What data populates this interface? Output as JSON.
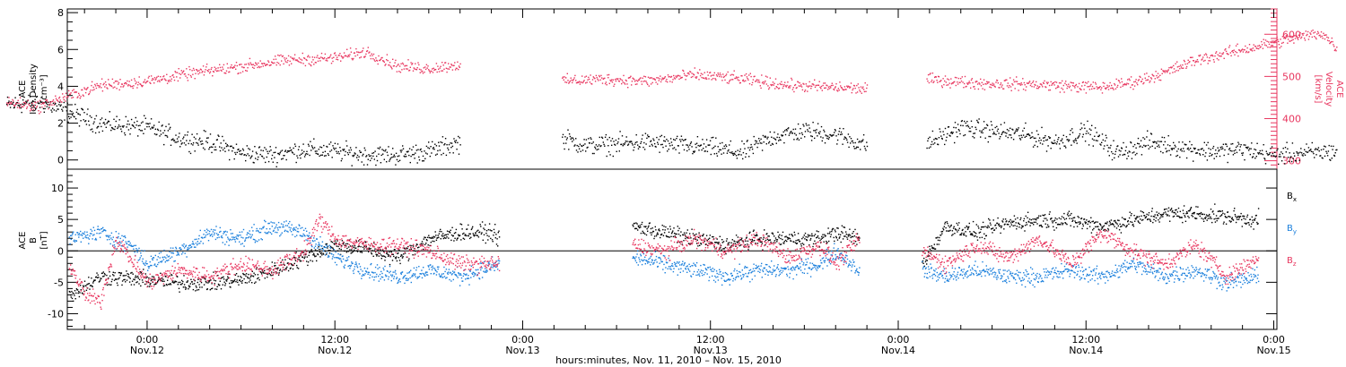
{
  "chart_data": [
    {
      "type": "scatter",
      "panel": "top",
      "ylabel_lines": [
        "ACE",
        "Ion Density",
        "[cm⁻³]"
      ],
      "y2label_lines": [
        "ACE",
        "Velocity",
        "[km/s]"
      ],
      "ylim": [
        -0.5,
        8.2
      ],
      "y2lim": [
        280,
        660
      ],
      "yticks": [
        0,
        2,
        4,
        6,
        8
      ],
      "y2ticks": [
        300,
        400,
        500,
        600
      ],
      "colors": {
        "density": "#000000",
        "velocity": "#e8365f"
      },
      "series": [
        {
          "key": "density",
          "axis": "left",
          "color": "#000000",
          "segments": [
            {
              "points": [
                [
                  -9,
                  3.0
                ],
                [
                  -7,
                  3.2
                ],
                [
                  -5,
                  2.6
                ],
                [
                  -3,
                  2.0
                ],
                [
                  0,
                  1.8
                ],
                [
                  2,
                  1.2
                ],
                [
                  4,
                  1.0
                ],
                [
                  6,
                  0.4
                ],
                [
                  8,
                  0.3
                ],
                [
                  10,
                  0.6
                ],
                [
                  12,
                  0.5
                ],
                [
                  14,
                  0.3
                ],
                [
                  16,
                  0.3
                ],
                [
                  18,
                  0.5
                ],
                [
                  20,
                  1.0
                ]
              ]
            },
            {
              "points": [
                [
                  26.5,
                  1.2
                ],
                [
                  28,
                  0.8
                ],
                [
                  30,
                  0.9
                ],
                [
                  32,
                  1.0
                ],
                [
                  34,
                  0.8
                ],
                [
                  36,
                  0.7
                ],
                [
                  38,
                  0.4
                ],
                [
                  40,
                  1.3
                ],
                [
                  42,
                  1.6
                ],
                [
                  44,
                  1.4
                ],
                [
                  46,
                  0.8
                ]
              ]
            },
            {
              "points": [
                [
                  49.8,
                  0.9
                ],
                [
                  52,
                  1.8
                ],
                [
                  54,
                  1.6
                ],
                [
                  56,
                  1.4
                ],
                [
                  58,
                  1.0
                ],
                [
                  60,
                  1.6
                ],
                [
                  62,
                  0.4
                ],
                [
                  64,
                  1.0
                ],
                [
                  66,
                  0.7
                ],
                [
                  68,
                  0.5
                ],
                [
                  70,
                  0.6
                ],
                [
                  72,
                  0.3
                ],
                [
                  74,
                  0.4
                ],
                [
                  76,
                  0.5
                ]
              ]
            }
          ]
        },
        {
          "key": "velocity",
          "axis": "right",
          "color": "#e8365f",
          "segments": [
            {
              "points": [
                [
                  -9,
                  440
                ],
                [
                  -7,
                  430
                ],
                [
                  -5,
                  455
                ],
                [
                  -3,
                  480
                ],
                [
                  0,
                  490
                ],
                [
                  3,
                  510
                ],
                [
                  6,
                  525
                ],
                [
                  9,
                  540
                ],
                [
                  12,
                  545
                ],
                [
                  14,
                  560
                ],
                [
                  16,
                  525
                ],
                [
                  18,
                  520
                ],
                [
                  20,
                  530
                ]
              ]
            },
            {
              "points": [
                [
                  26.5,
                  490
                ],
                [
                  29,
                  495
                ],
                [
                  32,
                  490
                ],
                [
                  35,
                  505
                ],
                [
                  38,
                  495
                ],
                [
                  41,
                  480
                ],
                [
                  44,
                  475
                ],
                [
                  46,
                  472
                ]
              ]
            },
            {
              "points": [
                [
                  49.8,
                  495
                ],
                [
                  53,
                  485
                ],
                [
                  57,
                  482
                ],
                [
                  61,
                  475
                ],
                [
                  63,
                  488
                ],
                [
                  65,
                  510
                ],
                [
                  67,
                  540
                ],
                [
                  70,
                  565
                ],
                [
                  73,
                  590
                ],
                [
                  75,
                  605
                ],
                [
                  76,
                  570
                ]
              ]
            }
          ]
        }
      ]
    },
    {
      "type": "scatter",
      "panel": "bottom",
      "ylabel_lines": [
        "ACE",
        "B",
        "[nT]"
      ],
      "ylim": [
        -12.5,
        13
      ],
      "yticks": [
        -10,
        -5,
        0,
        5,
        10
      ],
      "zero_line": true,
      "xlabel": "hours:minutes, Nov. 11, 2010 – Nov. 15, 2010",
      "x_start_hours_before_midnight": 5.1,
      "xlim_hours": [
        -5.1,
        72.2
      ],
      "xticks": [
        {
          "hours": 0,
          "time": "0:00",
          "date": "Nov.12"
        },
        {
          "hours": 12,
          "time": "12:00",
          "date": "Nov.12"
        },
        {
          "hours": 24,
          "time": "0:00",
          "date": "Nov.13"
        },
        {
          "hours": 36,
          "time": "12:00",
          "date": "Nov.13"
        },
        {
          "hours": 48,
          "time": "0:00",
          "date": "Nov.14"
        },
        {
          "hours": 60,
          "time": "12:00",
          "date": "Nov.14"
        },
        {
          "hours": 72,
          "time": "0:00",
          "date": "Nov.15"
        }
      ],
      "legend": [
        {
          "label": "B",
          "sub": "x",
          "color": "#000000"
        },
        {
          "label": "B",
          "sub": "y",
          "color": "#1a7fdc"
        },
        {
          "label": "B",
          "sub": "z",
          "color": "#e8365f"
        }
      ],
      "series": [
        {
          "key": "bx",
          "color": "#000000",
          "segments": [
            {
              "points": [
                [
                  -5,
                  -7
                ],
                [
                  -3,
                  -4
                ],
                [
                  0,
                  -4.5
                ],
                [
                  2,
                  -5
                ],
                [
                  4,
                  -5
                ],
                [
                  6,
                  -4.5
                ],
                [
                  8,
                  -3
                ],
                [
                  10,
                  -1
                ],
                [
                  12,
                  1
                ],
                [
                  14,
                  0.5
                ],
                [
                  16,
                  -1
                ],
                [
                  18,
                  2
                ],
                [
                  20,
                  3
                ],
                [
                  22,
                  3
                ],
                [
                  22.5,
                  2
                ]
              ]
            },
            {
              "points": [
                [
                  31,
                  4
                ],
                [
                  33,
                  3
                ],
                [
                  35,
                  2
                ],
                [
                  37,
                  1
                ],
                [
                  39,
                  2
                ],
                [
                  41,
                  2
                ],
                [
                  43,
                  2
                ],
                [
                  44,
                  3
                ],
                [
                  45.5,
                  2
                ]
              ]
            },
            {
              "points": [
                [
                  49.5,
                  -2
                ],
                [
                  51,
                  4
                ],
                [
                  53,
                  3
                ],
                [
                  55,
                  4.5
                ],
                [
                  57,
                  5
                ],
                [
                  59,
                  5
                ],
                [
                  61,
                  4
                ],
                [
                  63,
                  5
                ],
                [
                  65,
                  6
                ],
                [
                  67,
                  6
                ],
                [
                  69,
                  5.5
                ],
                [
                  71,
                  5
                ]
              ]
            }
          ]
        },
        {
          "key": "by",
          "color": "#1a7fdc",
          "segments": [
            {
              "points": [
                [
                  -5,
                  2
                ],
                [
                  -3,
                  3
                ],
                [
                  -1,
                  1
                ],
                [
                  0,
                  -2
                ],
                [
                  2,
                  0
                ],
                [
                  4,
                  3
                ],
                [
                  6,
                  2
                ],
                [
                  8,
                  4
                ],
                [
                  10,
                  3
                ],
                [
                  12,
                  -1
                ],
                [
                  14,
                  -3
                ],
                [
                  16,
                  -4
                ],
                [
                  18,
                  -3
                ],
                [
                  20,
                  -4
                ],
                [
                  22.5,
                  -2
                ]
              ]
            },
            {
              "points": [
                [
                  31,
                  -1
                ],
                [
                  33,
                  -2
                ],
                [
                  35,
                  -3
                ],
                [
                  37,
                  -4
                ],
                [
                  39,
                  -3
                ],
                [
                  41,
                  -3
                ],
                [
                  43,
                  -2
                ],
                [
                  44,
                  0
                ],
                [
                  45.5,
                  -3
                ]
              ]
            },
            {
              "points": [
                [
                  49.5,
                  -3
                ],
                [
                  51,
                  -4
                ],
                [
                  53,
                  -3
                ],
                [
                  55,
                  -4
                ],
                [
                  57,
                  -4
                ],
                [
                  59,
                  -3
                ],
                [
                  61,
                  -4
                ],
                [
                  63,
                  -2
                ],
                [
                  65,
                  -4
                ],
                [
                  67,
                  -3
                ],
                [
                  69,
                  -5
                ],
                [
                  71,
                  -4
                ]
              ]
            }
          ]
        },
        {
          "key": "bz",
          "color": "#e8365f",
          "segments": [
            {
              "points": [
                [
                  -5,
                  -2
                ],
                [
                  -4,
                  -7
                ],
                [
                  -3,
                  -8
                ],
                [
                  -2,
                  2
                ],
                [
                  0,
                  -5
                ],
                [
                  2,
                  -3
                ],
                [
                  4,
                  -4
                ],
                [
                  6,
                  -2
                ],
                [
                  8,
                  -3
                ],
                [
                  10,
                  0
                ],
                [
                  11,
                  5
                ],
                [
                  12,
                  2
                ],
                [
                  14,
                  1
                ],
                [
                  16,
                  1
                ],
                [
                  18,
                  0
                ],
                [
                  20,
                  -2
                ],
                [
                  22.5,
                  -2
                ]
              ]
            },
            {
              "points": [
                [
                  31,
                  1
                ],
                [
                  33,
                  0
                ],
                [
                  35,
                  2
                ],
                [
                  37,
                  0
                ],
                [
                  39,
                  2
                ],
                [
                  41,
                  -1
                ],
                [
                  43,
                  1
                ],
                [
                  44,
                  -2
                ],
                [
                  45.5,
                  2
                ]
              ]
            },
            {
              "points": [
                [
                  49.5,
                  0
                ],
                [
                  51,
                  -2
                ],
                [
                  53,
                  1
                ],
                [
                  55,
                  -1
                ],
                [
                  57,
                  2
                ],
                [
                  59,
                  -2
                ],
                [
                  61,
                  3
                ],
                [
                  63,
                  0
                ],
                [
                  65,
                  -2
                ],
                [
                  67,
                  1
                ],
                [
                  69,
                  -4
                ],
                [
                  71,
                  -1
                ]
              ]
            }
          ]
        }
      ]
    }
  ]
}
